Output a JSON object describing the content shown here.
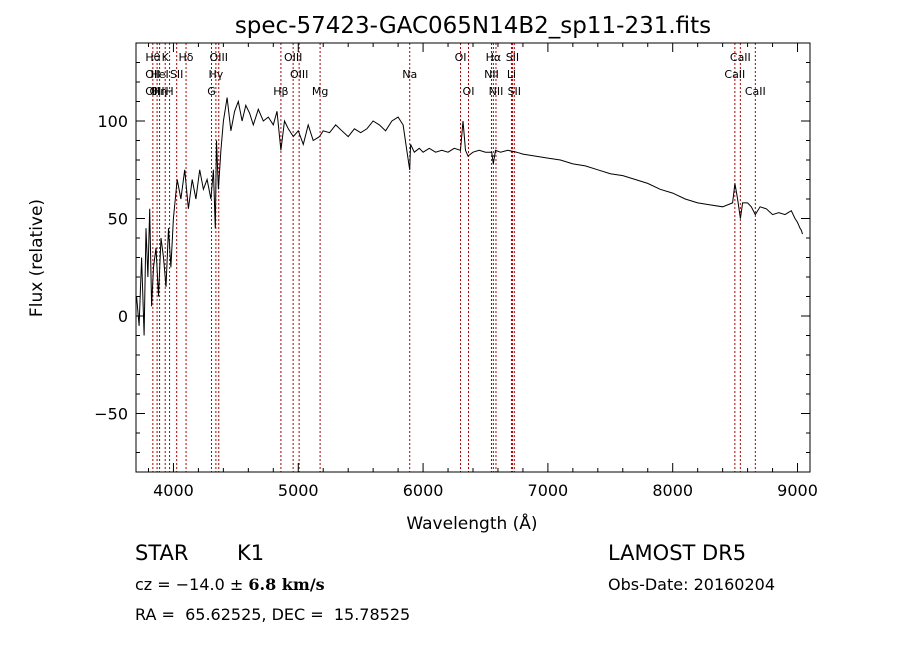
{
  "chart_data": {
    "type": "line",
    "title": "spec-57423-GAC065N14B2_sp11-231.fits",
    "xlabel": "Wavelength (Å)",
    "ylabel": "Flux (relative)",
    "xlim": [
      3700,
      9100
    ],
    "ylim": [
      -80,
      140
    ],
    "xticks": [
      4000,
      5000,
      6000,
      7000,
      8000,
      9000
    ],
    "yticks": [
      -50,
      0,
      50,
      100
    ],
    "grid": false,
    "line_color": "#000000",
    "marker_color": "#aa0000",
    "series": [
      {
        "x": [
          3705,
          3725,
          3745,
          3765,
          3780,
          3795,
          3810,
          3825,
          3840,
          3860,
          3880,
          3900,
          3920,
          3940,
          3960,
          3980,
          4000,
          4030,
          4060,
          4090,
          4120,
          4150,
          4180,
          4210,
          4240,
          4270,
          4300,
          4320,
          4335,
          4345,
          4360,
          4380,
          4400,
          4430,
          4460,
          4490,
          4520,
          4550,
          4580,
          4610,
          4640,
          4680,
          4720,
          4760,
          4800,
          4830,
          4861,
          4890,
          4920,
          4960,
          5000,
          5040,
          5080,
          5120,
          5170,
          5200,
          5250,
          5300,
          5350,
          5400,
          5450,
          5500,
          5550,
          5600,
          5650,
          5700,
          5750,
          5800,
          5840,
          5870,
          5893,
          5900,
          5930,
          5970,
          6000,
          6050,
          6100,
          6150,
          6200,
          6250,
          6300,
          6320,
          6340,
          6360,
          6400,
          6450,
          6500,
          6550,
          6563,
          6580,
          6620,
          6680,
          6750,
          6800,
          6900,
          7000,
          7100,
          7200,
          7300,
          7400,
          7500,
          7600,
          7700,
          7800,
          7900,
          8000,
          8100,
          8200,
          8300,
          8400,
          8480,
          8498,
          8520,
          8542,
          8560,
          8600,
          8630,
          8662,
          8700,
          8750,
          8800,
          8850,
          8900,
          8950,
          8980,
          9000,
          9020,
          9030,
          9040
        ],
        "y": [
          10,
          -5,
          30,
          -10,
          45,
          20,
          55,
          5,
          25,
          35,
          10,
          40,
          30,
          15,
          45,
          25,
          50,
          70,
          60,
          75,
          55,
          70,
          60,
          75,
          65,
          70,
          60,
          75,
          45,
          90,
          65,
          85,
          100,
          112,
          95,
          105,
          110,
          100,
          108,
          104,
          98,
          106,
          100,
          102,
          98,
          105,
          85,
          100,
          96,
          92,
          95,
          88,
          98,
          90,
          92,
          95,
          94,
          98,
          95,
          92,
          96,
          94,
          96,
          100,
          98,
          95,
          100,
          102,
          98,
          85,
          75,
          88,
          84,
          86,
          84,
          86,
          84,
          85,
          84,
          86,
          85,
          100,
          85,
          82,
          84,
          85,
          84,
          84,
          78,
          85,
          84,
          85,
          84,
          83,
          82,
          81,
          80,
          78,
          77,
          75,
          73,
          72,
          70,
          68,
          65,
          63,
          60,
          58,
          57,
          56,
          58,
          68,
          60,
          50,
          58,
          58,
          56,
          52,
          56,
          55,
          52,
          53,
          52,
          54,
          50,
          48,
          45,
          44,
          42
        ]
      }
    ],
    "lines": [
      {
        "x": 3835,
        "labels": [
          "Hθ",
          "OII",
          "OII"
        ]
      },
      {
        "x": 3869,
        "labels": [
          "",
          "",
          "OII"
        ]
      },
      {
        "x": 3889,
        "labels": [
          "",
          "HeI",
          "Hη"
        ]
      },
      {
        "x": 3934,
        "labels": [
          "K",
          "",
          ""
        ]
      },
      {
        "x": 3969,
        "labels": [
          "",
          "",
          "H"
        ]
      },
      {
        "x": 4026,
        "labels": [
          "",
          "SII",
          ""
        ]
      },
      {
        "x": 4101,
        "labels": [
          "Hδ",
          "",
          ""
        ]
      },
      {
        "x": 4305,
        "labels": [
          "",
          "",
          "G"
        ]
      },
      {
        "x": 4340,
        "labels": [
          "",
          "Hγ",
          ""
        ]
      },
      {
        "x": 4363,
        "labels": [
          "OIII",
          "",
          ""
        ]
      },
      {
        "x": 4861,
        "labels": [
          "",
          "",
          "Hβ"
        ]
      },
      {
        "x": 4959,
        "labels": [
          "OIII",
          "",
          ""
        ]
      },
      {
        "x": 5007,
        "labels": [
          "",
          "OIII",
          ""
        ]
      },
      {
        "x": 5175,
        "labels": [
          "",
          "",
          "Mg"
        ]
      },
      {
        "x": 5893,
        "labels": [
          "",
          "Na",
          ""
        ]
      },
      {
        "x": 6300,
        "labels": [
          "OI",
          "",
          ""
        ]
      },
      {
        "x": 6364,
        "labels": [
          "",
          "",
          "OI"
        ]
      },
      {
        "x": 6548,
        "labels": [
          "",
          "NII",
          ""
        ]
      },
      {
        "x": 6563,
        "labels": [
          "Hα",
          "",
          ""
        ]
      },
      {
        "x": 6584,
        "labels": [
          "",
          "",
          "NII"
        ]
      },
      {
        "x": 6708,
        "labels": [
          "",
          "Li",
          ""
        ]
      },
      {
        "x": 6716,
        "labels": [
          "SII",
          "",
          ""
        ]
      },
      {
        "x": 6731,
        "labels": [
          "",
          "",
          "SII"
        ]
      },
      {
        "x": 8498,
        "labels": [
          "",
          "CaII",
          ""
        ]
      },
      {
        "x": 8542,
        "labels": [
          "CaII",
          "",
          ""
        ]
      },
      {
        "x": 8662,
        "labels": [
          "",
          "",
          "CaII"
        ]
      }
    ]
  },
  "info": {
    "class": "STAR",
    "subclass": "K1",
    "survey": "LAMOST DR5",
    "cz_text": "cz = −14.0 ± ",
    "cz_err": "6.8 km/s",
    "obsdate": "Obs-Date: 20160204",
    "coords": "RA =  65.62525, DEC =  15.78525"
  }
}
